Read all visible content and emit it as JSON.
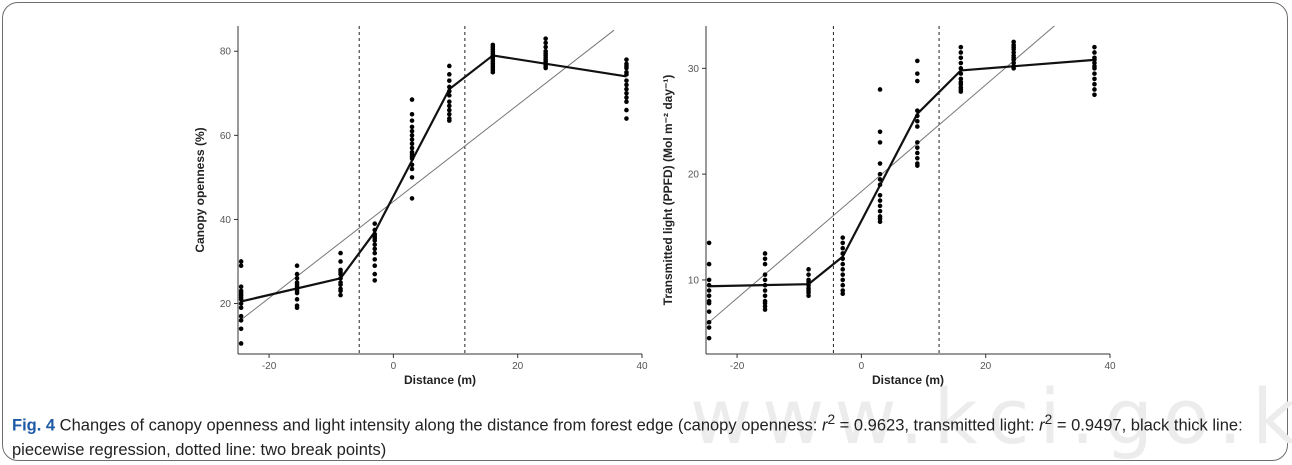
{
  "watermark": "www.kci.go.kr",
  "caption": {
    "fig_label": "Fig. 4",
    "text_1": " Changes of canopy openness and light intensity along the distance from forest edge (canopy openness: ",
    "r_1": "r",
    "sup_1": "2",
    "text_2": " = 0.9623, transmitted light: ",
    "r_2": "r",
    "sup_2": "2",
    "text_3": " = 0.9497, black thick line: piecewise regression, dotted line: two break points)"
  },
  "chart_data": [
    {
      "type": "scatter",
      "xlabel": "Distance (m)",
      "ylabel": "Canopy openness (%)",
      "xlim": [
        -25,
        40
      ],
      "ylim": [
        8,
        86
      ],
      "xticks": [
        "-20",
        "0",
        "20",
        "40"
      ],
      "xtick_values": [
        -20,
        0,
        20,
        40
      ],
      "yticks": [
        "20",
        "40",
        "60",
        "80"
      ],
      "ytick_values": [
        20,
        40,
        60,
        80
      ],
      "grid": false,
      "points": {
        "x": [
          -24.5,
          -24.5,
          -24.5,
          -24.5,
          -24.5,
          -24.5,
          -24.5,
          -24.5,
          -24.5,
          -24.5,
          -24.5,
          -24.5,
          -24.5,
          -24.5,
          -15.5,
          -15.5,
          -15.5,
          -15.5,
          -15.5,
          -15.5,
          -15.5,
          -15.5,
          -15.5,
          -15.5,
          -15.5,
          -15.5,
          -8.5,
          -8.5,
          -8.5,
          -8.5,
          -8.5,
          -8.5,
          -8.5,
          -8.5,
          -8.5,
          -8.5,
          -8.5,
          -3,
          -3,
          -3,
          -3,
          -3,
          -3,
          -3,
          -3,
          -3,
          -3,
          -3,
          -3,
          -3,
          3,
          3,
          3,
          3,
          3,
          3,
          3,
          3,
          3,
          3,
          3,
          3,
          3,
          3,
          3,
          3,
          3,
          9,
          9,
          9,
          9,
          9,
          9,
          9,
          9,
          9,
          9,
          9,
          9,
          16,
          16,
          16,
          16,
          16,
          16,
          16,
          16,
          16,
          16,
          16,
          16,
          16,
          16,
          24.5,
          24.5,
          24.5,
          24.5,
          24.5,
          24.5,
          24.5,
          24.5,
          24.5,
          24.5,
          24.5,
          24.5,
          37.5,
          37.5,
          37.5,
          37.5,
          37.5,
          37.5,
          37.5,
          37.5,
          37.5,
          37.5,
          37.5,
          37.5,
          37.5,
          37.5
        ],
        "y": [
          30,
          29,
          24,
          23,
          22.5,
          22,
          21.5,
          21,
          20,
          19,
          17,
          16,
          14,
          10.5,
          29,
          27,
          26,
          25,
          24.5,
          24,
          23.5,
          23,
          22.5,
          21,
          19.5,
          19,
          32,
          30,
          28,
          27.5,
          27,
          26,
          25,
          24.5,
          23.5,
          23,
          22,
          39,
          37.5,
          36.5,
          36,
          35.5,
          35,
          34,
          33,
          32,
          30.5,
          29,
          27,
          25.5,
          68.5,
          65,
          63.5,
          62,
          61,
          60,
          59,
          58,
          57,
          56,
          55.5,
          55,
          54.5,
          53,
          52,
          50,
          45,
          76.5,
          74.5,
          73,
          71.5,
          70.5,
          69.5,
          68,
          67,
          66,
          65,
          64,
          63.5,
          81.5,
          81,
          80.5,
          80,
          79.5,
          79,
          78.5,
          78,
          77.5,
          77,
          76.5,
          76,
          75.5,
          75,
          83,
          82,
          81,
          80,
          79.5,
          79,
          78.5,
          78,
          77.5,
          77,
          76.5,
          76,
          78,
          77,
          76.5,
          76,
          75,
          74.5,
          73,
          72,
          71,
          70,
          69,
          68,
          66,
          64
        ]
      },
      "piecewise_fit": {
        "x": [
          -24.5,
          -8.5,
          -3,
          9,
          16,
          37.5
        ],
        "y": [
          20.5,
          26,
          37,
          71,
          79,
          74
        ]
      },
      "linear_fit": {
        "x": [
          -25.5,
          35.5
        ],
        "y": [
          15,
          85
        ]
      },
      "break_points": [
        -5.5,
        11.5
      ]
    },
    {
      "type": "scatter",
      "xlabel": "Distance (m)",
      "ylabel": "Transmitted light (PPFD) (Mol m⁻² day⁻¹)",
      "xlim": [
        -25,
        40
      ],
      "ylim": [
        3,
        34
      ],
      "xticks": [
        "-20",
        "0",
        "20",
        "40"
      ],
      "xtick_values": [
        -20,
        0,
        20,
        40
      ],
      "yticks": [
        "10",
        "20",
        "30"
      ],
      "ytick_values": [
        10,
        20,
        30
      ],
      "grid": false,
      "points": {
        "x": [
          -24.5,
          -24.5,
          -24.5,
          -24.5,
          -24.5,
          -24.5,
          -24.5,
          -24.5,
          -24.5,
          -24.5,
          -24.5,
          -24.5,
          -15.5,
          -15.5,
          -15.5,
          -15.5,
          -15.5,
          -15.5,
          -15.5,
          -15.5,
          -15.5,
          -15.5,
          -15.5,
          -15.5,
          -8.5,
          -8.5,
          -8.5,
          -8.5,
          -8.5,
          -8.5,
          -8.5,
          -8.5,
          -8.5,
          -3,
          -3,
          -3,
          -3,
          -3,
          -3,
          -3,
          -3,
          -3,
          -3,
          -3,
          -3,
          3,
          3,
          3,
          3,
          3,
          3,
          3,
          3,
          3,
          3,
          3,
          3,
          3,
          3,
          9,
          9,
          9,
          9,
          9,
          9,
          9,
          9,
          9,
          9,
          9,
          9,
          9,
          16,
          16,
          16,
          16,
          16,
          16,
          16,
          16,
          16,
          16,
          16,
          16,
          24.5,
          24.5,
          24.5,
          24.5,
          24.5,
          24.5,
          24.5,
          24.5,
          24.5,
          24.5,
          24.5,
          37.5,
          37.5,
          37.5,
          37.5,
          37.5,
          37.5,
          37.5,
          37.5,
          37.5,
          37.5,
          37.5,
          37.5
        ],
        "y": [
          13.5,
          11.5,
          10,
          9.5,
          9,
          8.5,
          8,
          7.8,
          7,
          6,
          5.5,
          4.5,
          12.5,
          12,
          11.5,
          10.5,
          10,
          9.5,
          9,
          8.5,
          8,
          7.8,
          7.5,
          7.2,
          11,
          10.5,
          10,
          9.8,
          9.5,
          9.2,
          9,
          8.8,
          8.5,
          14,
          13.5,
          13,
          12.5,
          12,
          11.5,
          11,
          10.5,
          10,
          9.5,
          9,
          8.7,
          28,
          24,
          23,
          21,
          20,
          19.5,
          19,
          18,
          17.5,
          17,
          16.5,
          16,
          15.8,
          15.5,
          30.7,
          29.5,
          28.8,
          26,
          25.5,
          25,
          24.5,
          23,
          22.5,
          22,
          21.5,
          21,
          20.8,
          32,
          31.5,
          31,
          30.5,
          30,
          29.5,
          29,
          28.7,
          28.5,
          28.2,
          28,
          27.8,
          32.5,
          32.2,
          32,
          31.8,
          31.5,
          31.2,
          31,
          30.8,
          30.5,
          30.2,
          30,
          32,
          31.5,
          31,
          30.8,
          30.5,
          30.2,
          30,
          29.5,
          29,
          28.5,
          28,
          27.5
        ]
      },
      "piecewise_fit": {
        "x": [
          -24.5,
          -8.5,
          -3,
          9,
          16,
          37.5
        ],
        "y": [
          9.4,
          9.6,
          12.2,
          25.7,
          29.8,
          30.8
        ]
      },
      "linear_fit": {
        "x": [
          -25.5,
          35
        ],
        "y": [
          5.5,
          36
        ]
      },
      "break_points": [
        -4.5,
        12.5
      ]
    }
  ]
}
